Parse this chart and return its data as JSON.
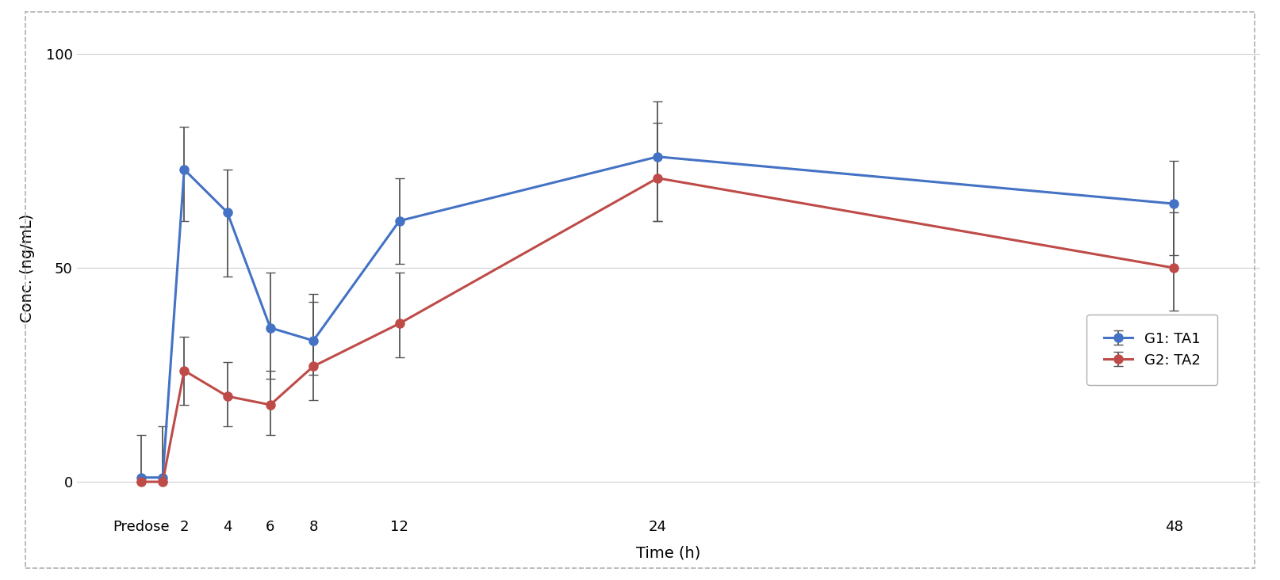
{
  "x_positions": [
    0,
    1,
    2,
    4,
    6,
    8,
    12,
    24,
    48
  ],
  "x_tick_positions": [
    0,
    1,
    2,
    4,
    6,
    8,
    12,
    24,
    48
  ],
  "x_tick_labels": [
    "Predose",
    "",
    "2",
    "4",
    "6",
    "8",
    "12",
    "24",
    "48"
  ],
  "g1_y": [
    1,
    1,
    73,
    63,
    36,
    33,
    61,
    76,
    65
  ],
  "g1_yerr_low": [
    1,
    1,
    12,
    15,
    12,
    8,
    10,
    15,
    12
  ],
  "g1_yerr_high": [
    10,
    12,
    10,
    10,
    13,
    11,
    10,
    13,
    10
  ],
  "g2_y": [
    0,
    0,
    26,
    20,
    18,
    27,
    37,
    71,
    50
  ],
  "g2_yerr_low": [
    0,
    0,
    8,
    7,
    7,
    8,
    8,
    10,
    10
  ],
  "g2_yerr_high": [
    0,
    0,
    8,
    8,
    8,
    15,
    12,
    13,
    13
  ],
  "g1_color": "#4472C4",
  "g2_color": "#BE4B48",
  "g1_label": "G1: TA1",
  "g2_label": "G2: TA2",
  "ylabel": "Conc. (ng/mL)",
  "xlabel": "Time (h)",
  "ylim": [
    -8,
    108
  ],
  "yticks": [
    0,
    50,
    100
  ],
  "background_color": "#ffffff",
  "grid_color": "#d0d0d0",
  "border_color": "#b0b0b0",
  "marker_size": 8,
  "line_width": 2.2,
  "capsize": 4,
  "elinewidth": 1.3,
  "ecolor": "#555555",
  "legend_fontsize": 13,
  "axis_fontsize": 14,
  "tick_fontsize": 13
}
